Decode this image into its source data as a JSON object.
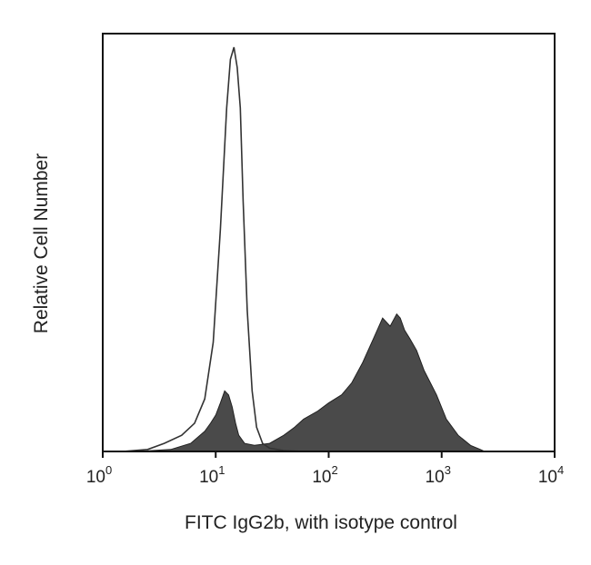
{
  "chart_data": {
    "type": "area",
    "xlabel": "FITC IgG2b, with isotype control",
    "ylabel": "Relative Cell Number",
    "x_scale": "log",
    "xlim": [
      1,
      10000
    ],
    "ylim": [
      0,
      1.0
    ],
    "grid": false,
    "x_ticks": [
      {
        "base": "10",
        "exp": "0"
      },
      {
        "base": "10",
        "exp": "1"
      },
      {
        "base": "10",
        "exp": "2"
      },
      {
        "base": "10",
        "exp": "3"
      },
      {
        "base": "10",
        "exp": "4"
      }
    ],
    "series": [
      {
        "role": "isotype control",
        "style": "outline",
        "color": "#333333",
        "x": [
          1.5,
          2.5,
          3.5,
          5,
          6.5,
          8,
          9.5,
          11,
          12.5,
          13.5,
          14.5,
          15.5,
          16.5,
          17.5,
          19,
          21,
          23,
          26,
          30,
          40,
          60
        ],
        "y": [
          0.0,
          0.005,
          0.02,
          0.04,
          0.07,
          0.13,
          0.27,
          0.55,
          0.85,
          0.97,
          1.0,
          0.95,
          0.85,
          0.62,
          0.35,
          0.15,
          0.06,
          0.02,
          0.008,
          0.002,
          0.0
        ]
      },
      {
        "role": "FITC IgG2b",
        "style": "filled",
        "color": "#4a4a4a",
        "x": [
          2,
          4,
          6,
          8,
          9,
          10,
          11,
          12,
          13,
          14,
          15,
          16,
          18,
          22,
          30,
          40,
          50,
          60,
          80,
          100,
          130,
          160,
          200,
          250,
          300,
          350,
          400,
          430,
          470,
          520,
          600,
          700,
          900,
          1100,
          1400,
          1800,
          2200,
          2400
        ],
        "y": [
          0.0,
          0.005,
          0.02,
          0.05,
          0.07,
          0.09,
          0.12,
          0.15,
          0.14,
          0.11,
          0.07,
          0.04,
          0.02,
          0.015,
          0.02,
          0.04,
          0.06,
          0.08,
          0.1,
          0.12,
          0.14,
          0.17,
          0.22,
          0.28,
          0.33,
          0.31,
          0.34,
          0.33,
          0.3,
          0.28,
          0.25,
          0.2,
          0.14,
          0.08,
          0.04,
          0.015,
          0.005,
          0.0
        ]
      }
    ]
  }
}
